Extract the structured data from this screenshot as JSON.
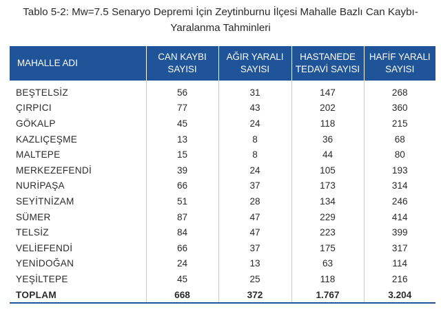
{
  "caption": {
    "line1": "Tablo 5-2: Mw=7.5 Senaryo Depremi İçin Zeytinburnu İlçesi Mahalle Bazlı Can Kaybı-",
    "line2": "Yaralanma Tahminleri"
  },
  "table": {
    "headers": [
      {
        "line1": "MAHALLE ADI",
        "line2": ""
      },
      {
        "line1": "CAN KAYBI",
        "line2": "SAYISI"
      },
      {
        "line1": "AĞIR YARALI",
        "line2": "SAYISI"
      },
      {
        "line1": "HASTANEDE",
        "line2": "TEDAVİ SAYISI"
      },
      {
        "line1": "HAFİF YARALI",
        "line2": "SAYISI"
      }
    ],
    "rows": [
      [
        "BEŞTELSİZ",
        "56",
        "31",
        "147",
        "268"
      ],
      [
        "ÇIRPICI",
        "77",
        "43",
        "202",
        "360"
      ],
      [
        "GÖKALP",
        "45",
        "24",
        "118",
        "215"
      ],
      [
        "KAZLIÇEŞME",
        "13",
        "8",
        "36",
        "68"
      ],
      [
        "MALTEPE",
        "15",
        "8",
        "44",
        "80"
      ],
      [
        "MERKEZEFENDİ",
        "39",
        "24",
        "105",
        "193"
      ],
      [
        "NURİPAŞA",
        "66",
        "37",
        "173",
        "314"
      ],
      [
        "SEYİTNİZAM",
        "51",
        "28",
        "134",
        "246"
      ],
      [
        "SÜMER",
        "87",
        "47",
        "229",
        "414"
      ],
      [
        "TELSİZ",
        "84",
        "47",
        "223",
        "399"
      ],
      [
        "VELİEFENDİ",
        "66",
        "37",
        "175",
        "317"
      ],
      [
        "YENİDOĞAN",
        "24",
        "13",
        "63",
        "114"
      ],
      [
        "YEŞİLTEPE",
        "45",
        "25",
        "118",
        "216"
      ]
    ],
    "total": [
      "TOPLAM",
      "668",
      "372",
      "1.767",
      "3.204"
    ]
  },
  "colors": {
    "header_bg": "#1f5598",
    "header_text": "#ffffff",
    "body_text": "#2a2a2a"
  }
}
